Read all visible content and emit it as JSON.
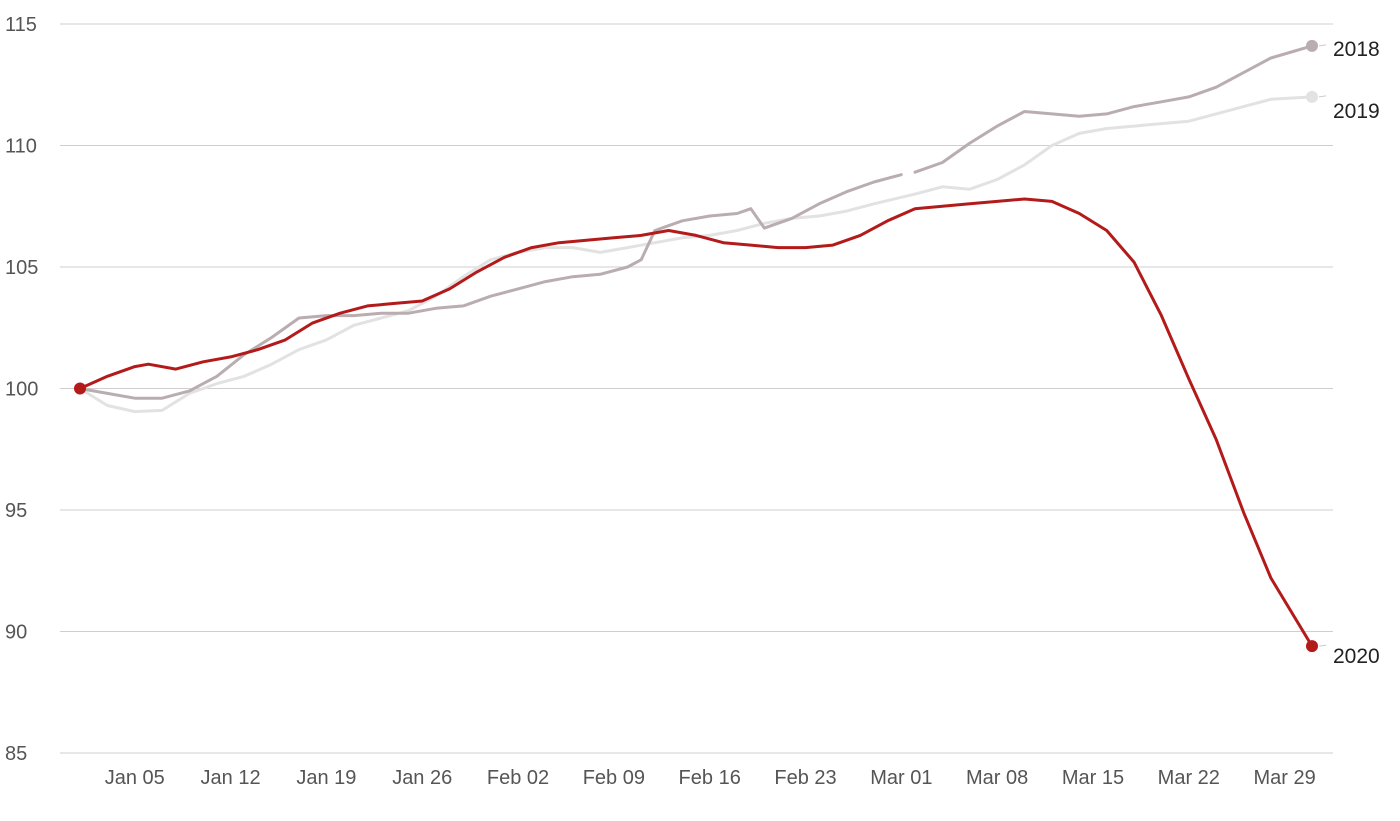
{
  "chart_data": {
    "type": "line",
    "title": "",
    "xlabel": "",
    "ylabel": "",
    "ylim": [
      85,
      115
    ],
    "y_ticks": [
      "85",
      "90",
      "95",
      "100",
      "105",
      "110",
      "115"
    ],
    "x_ticks": [
      "Jan 05",
      "Jan 12",
      "Jan 19",
      "Jan 26",
      "Feb 02",
      "Feb 09",
      "Feb 16",
      "Feb 23",
      "Mar 01",
      "Mar 08",
      "Mar 15",
      "Mar 22",
      "Mar 29"
    ],
    "x_range": [
      "2020-01-01",
      "2020-03-31"
    ],
    "grid": true,
    "legend": "end-of-line labels",
    "series": [
      {
        "name": "2019",
        "color": "#e2e2e2",
        "end_label": "2019",
        "points": [
          [
            "01-01",
            100.0
          ],
          [
            "01-03",
            99.3
          ],
          [
            "01-05",
            99.05
          ],
          [
            "01-07",
            99.1
          ],
          [
            "01-09",
            99.8
          ],
          [
            "01-11",
            100.2
          ],
          [
            "01-13",
            100.5
          ],
          [
            "01-15",
            101.0
          ],
          [
            "01-17",
            101.6
          ],
          [
            "01-19",
            102.0
          ],
          [
            "01-21",
            102.6
          ],
          [
            "01-23",
            102.9
          ],
          [
            "01-25",
            103.2
          ],
          [
            "01-27",
            103.8
          ],
          [
            "01-29",
            104.6
          ],
          [
            "01-31",
            105.3
          ],
          [
            "02-02",
            105.6
          ],
          [
            "02-04",
            105.8
          ],
          [
            "02-06",
            105.8
          ],
          [
            "02-08",
            105.6
          ],
          [
            "02-10",
            105.8
          ],
          [
            "02-12",
            106.0
          ],
          [
            "02-14",
            106.2
          ],
          [
            "02-16",
            106.3
          ],
          [
            "02-18",
            106.5
          ],
          [
            "02-20",
            106.8
          ],
          [
            "02-22",
            107.0
          ],
          [
            "02-24",
            107.1
          ],
          [
            "02-26",
            107.3
          ],
          [
            "02-28",
            107.6
          ],
          [
            "03-02",
            108.0
          ],
          [
            "03-04",
            108.3
          ],
          [
            "03-06",
            108.2
          ],
          [
            "03-08",
            108.6
          ],
          [
            "03-10",
            109.2
          ],
          [
            "03-12",
            110.0
          ],
          [
            "03-14",
            110.5
          ],
          [
            "03-16",
            110.7
          ],
          [
            "03-18",
            110.8
          ],
          [
            "03-20",
            110.9
          ],
          [
            "03-22",
            111.0
          ],
          [
            "03-24",
            111.3
          ],
          [
            "03-26",
            111.6
          ],
          [
            "03-28",
            111.9
          ],
          [
            "03-31",
            112.0
          ]
        ]
      },
      {
        "name": "2018",
        "color": "#b9adb0",
        "end_label": "2018",
        "points": [
          [
            "01-01",
            100.0
          ],
          [
            "01-03",
            99.8
          ],
          [
            "01-05",
            99.6
          ],
          [
            "01-07",
            99.6
          ],
          [
            "01-09",
            99.9
          ],
          [
            "01-11",
            100.5
          ],
          [
            "01-13",
            101.4
          ],
          [
            "01-15",
            102.1
          ],
          [
            "01-17",
            102.9
          ],
          [
            "01-19",
            103.0
          ],
          [
            "01-21",
            103.0
          ],
          [
            "01-23",
            103.1
          ],
          [
            "01-25",
            103.1
          ],
          [
            "01-27",
            103.3
          ],
          [
            "01-29",
            103.4
          ],
          [
            "01-31",
            103.8
          ],
          [
            "02-02",
            104.1
          ],
          [
            "02-04",
            104.4
          ],
          [
            "02-06",
            104.6
          ],
          [
            "02-08",
            104.7
          ],
          [
            "02-10",
            105.0
          ],
          [
            "02-11",
            105.3
          ],
          [
            "02-12",
            106.5
          ],
          [
            "02-14",
            106.9
          ],
          [
            "02-16",
            107.1
          ],
          [
            "02-18",
            107.2
          ],
          [
            "02-19",
            107.4
          ],
          [
            "02-20",
            106.6
          ],
          [
            "02-22",
            107.0
          ],
          [
            "02-24",
            107.6
          ],
          [
            "02-26",
            108.1
          ],
          [
            "02-28",
            108.5
          ],
          [
            "03-01",
            108.8
          ],
          null,
          [
            "03-02",
            108.9
          ],
          [
            "03-04",
            109.3
          ],
          [
            "03-06",
            110.1
          ],
          [
            "03-08",
            110.8
          ],
          [
            "03-10",
            111.4
          ],
          [
            "03-12",
            111.3
          ],
          [
            "03-14",
            111.2
          ],
          [
            "03-16",
            111.3
          ],
          [
            "03-18",
            111.6
          ],
          [
            "03-20",
            111.8
          ],
          [
            "03-22",
            112.0
          ],
          [
            "03-24",
            112.4
          ],
          [
            "03-26",
            113.0
          ],
          [
            "03-28",
            113.6
          ],
          [
            "03-31",
            114.1
          ]
        ]
      },
      {
        "name": "2020",
        "color": "#b31b1b",
        "end_label": "2020",
        "points": [
          [
            "01-01",
            100.0
          ],
          [
            "01-03",
            100.5
          ],
          [
            "01-05",
            100.9
          ],
          [
            "01-06",
            101.0
          ],
          [
            "01-08",
            100.8
          ],
          [
            "01-10",
            101.1
          ],
          [
            "01-12",
            101.3
          ],
          [
            "01-14",
            101.6
          ],
          [
            "01-16",
            102.0
          ],
          [
            "01-18",
            102.7
          ],
          [
            "01-20",
            103.1
          ],
          [
            "01-22",
            103.4
          ],
          [
            "01-24",
            103.5
          ],
          [
            "01-26",
            103.6
          ],
          [
            "01-28",
            104.1
          ],
          [
            "01-30",
            104.8
          ],
          [
            "02-01",
            105.4
          ],
          [
            "02-03",
            105.8
          ],
          [
            "02-05",
            106.0
          ],
          [
            "02-07",
            106.1
          ],
          [
            "02-09",
            106.2
          ],
          [
            "02-11",
            106.3
          ],
          [
            "02-13",
            106.5
          ],
          [
            "02-15",
            106.3
          ],
          [
            "02-17",
            106.0
          ],
          [
            "02-19",
            105.9
          ],
          [
            "02-21",
            105.8
          ],
          [
            "02-23",
            105.8
          ],
          [
            "02-25",
            105.9
          ],
          [
            "02-27",
            106.3
          ],
          [
            "02-29",
            106.9
          ],
          [
            "03-02",
            107.4
          ],
          [
            "03-04",
            107.5
          ],
          [
            "03-06",
            107.6
          ],
          [
            "03-08",
            107.7
          ],
          [
            "03-10",
            107.8
          ],
          [
            "03-12",
            107.7
          ],
          [
            "03-14",
            107.2
          ],
          [
            "03-16",
            106.5
          ],
          [
            "03-18",
            105.2
          ],
          [
            "03-20",
            103.0
          ],
          [
            "03-22",
            100.4
          ],
          [
            "03-24",
            97.9
          ],
          [
            "03-26",
            94.9
          ],
          [
            "03-28",
            92.2
          ],
          [
            "03-31",
            89.4
          ]
        ]
      }
    ]
  }
}
